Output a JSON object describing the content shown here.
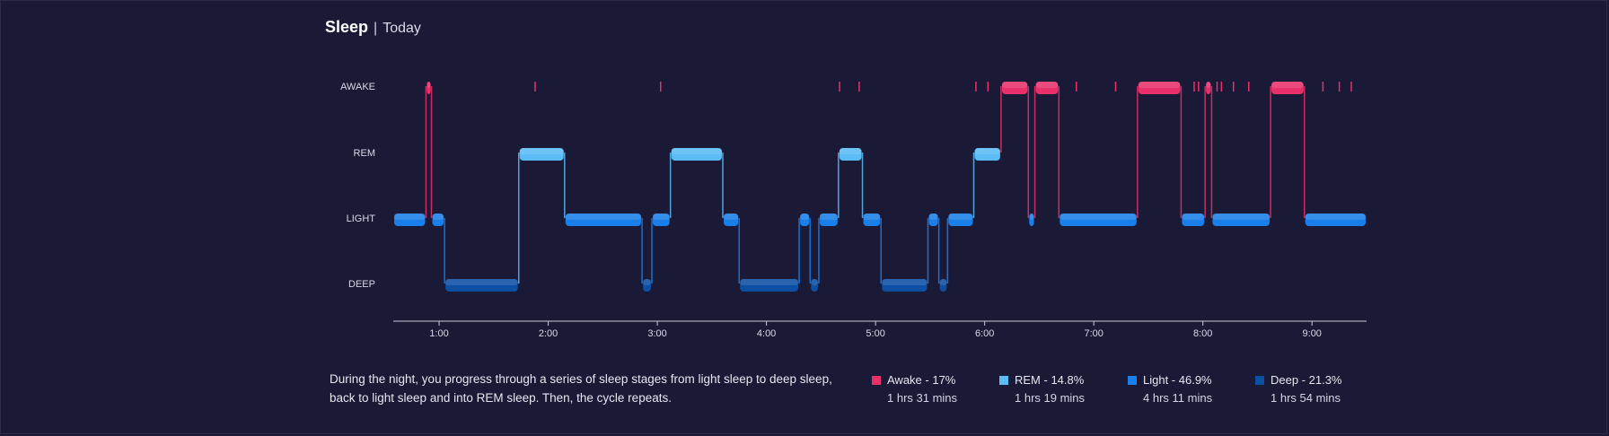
{
  "header": {
    "title": "Sleep",
    "separator": "|",
    "period": "Today"
  },
  "description": "During the night, you progress through a series of sleep stages from light sleep to deep sleep, back to light sleep and into REM sleep. Then, the cycle repeats.",
  "colors": {
    "awake": "#e8316a",
    "rem": "#5cbcf6",
    "light": "#1a7fe8",
    "deep": "#0d4fa3",
    "background": "#1a1a37",
    "axis": "#c9cadb"
  },
  "legend": [
    {
      "key": "awake",
      "label": "Awake - 17%",
      "duration": "1 hrs 31 mins"
    },
    {
      "key": "rem",
      "label": "REM - 14.8%",
      "duration": "1 hrs 19 mins"
    },
    {
      "key": "light",
      "label": "Light - 46.9%",
      "duration": "4 hrs 11 mins"
    },
    {
      "key": "deep",
      "label": "Deep - 21.3%",
      "duration": "1 hrs 54 mins"
    }
  ],
  "chart_data": {
    "type": "line",
    "title": "",
    "xlabel": "",
    "ylabel": "",
    "y_categories": [
      "AWAKE",
      "REM",
      "LIGHT",
      "DEEP"
    ],
    "x_ticks": [
      "1:00",
      "2:00",
      "3:00",
      "4:00",
      "5:00",
      "6:00",
      "7:00",
      "8:00",
      "9:00"
    ],
    "x_range_hours": [
      0.58,
      9.5
    ],
    "stages": [
      {
        "start": 0.58,
        "end": 0.88,
        "stage": "LIGHT"
      },
      {
        "start": 0.88,
        "end": 0.93,
        "stage": "AWAKE"
      },
      {
        "start": 0.93,
        "end": 1.05,
        "stage": "LIGHT"
      },
      {
        "start": 1.05,
        "end": 1.73,
        "stage": "DEEP"
      },
      {
        "start": 1.73,
        "end": 2.15,
        "stage": "REM"
      },
      {
        "start": 2.15,
        "end": 2.86,
        "stage": "LIGHT"
      },
      {
        "start": 2.86,
        "end": 2.95,
        "stage": "DEEP"
      },
      {
        "start": 2.95,
        "end": 3.12,
        "stage": "LIGHT"
      },
      {
        "start": 3.12,
        "end": 3.6,
        "stage": "REM"
      },
      {
        "start": 3.6,
        "end": 3.75,
        "stage": "LIGHT"
      },
      {
        "start": 3.75,
        "end": 4.3,
        "stage": "DEEP"
      },
      {
        "start": 4.3,
        "end": 4.4,
        "stage": "LIGHT"
      },
      {
        "start": 4.4,
        "end": 4.48,
        "stage": "DEEP"
      },
      {
        "start": 4.48,
        "end": 4.66,
        "stage": "LIGHT"
      },
      {
        "start": 4.66,
        "end": 4.88,
        "stage": "REM"
      },
      {
        "start": 4.88,
        "end": 5.05,
        "stage": "LIGHT"
      },
      {
        "start": 5.05,
        "end": 5.48,
        "stage": "DEEP"
      },
      {
        "start": 5.48,
        "end": 5.58,
        "stage": "LIGHT"
      },
      {
        "start": 5.58,
        "end": 5.66,
        "stage": "DEEP"
      },
      {
        "start": 5.66,
        "end": 5.9,
        "stage": "LIGHT"
      },
      {
        "start": 5.9,
        "end": 6.15,
        "stage": "REM"
      },
      {
        "start": 6.15,
        "end": 6.4,
        "stage": "AWAKE"
      },
      {
        "start": 6.4,
        "end": 6.46,
        "stage": "LIGHT"
      },
      {
        "start": 6.46,
        "end": 6.68,
        "stage": "AWAKE"
      },
      {
        "start": 6.68,
        "end": 7.4,
        "stage": "LIGHT"
      },
      {
        "start": 7.4,
        "end": 7.8,
        "stage": "AWAKE"
      },
      {
        "start": 7.8,
        "end": 8.02,
        "stage": "LIGHT"
      },
      {
        "start": 8.02,
        "end": 8.08,
        "stage": "AWAKE"
      },
      {
        "start": 8.08,
        "end": 8.62,
        "stage": "LIGHT"
      },
      {
        "start": 8.62,
        "end": 8.93,
        "stage": "AWAKE"
      },
      {
        "start": 8.93,
        "end": 9.5,
        "stage": "LIGHT"
      }
    ],
    "brief_awakenings": [
      1.88,
      3.03,
      4.67,
      4.85,
      5.92,
      6.03,
      6.84,
      7.2,
      7.92,
      7.96,
      8.13,
      8.17,
      8.28,
      8.42,
      9.1,
      9.25,
      9.36
    ],
    "grid": false,
    "legend_position": "bottom-right"
  }
}
